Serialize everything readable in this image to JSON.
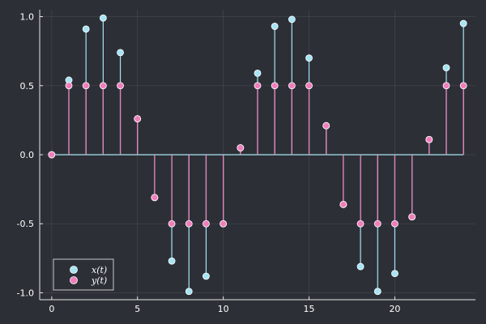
{
  "chart_data": {
    "type": "stem",
    "title": "",
    "xlabel": "",
    "ylabel": "",
    "xlim": [
      -0.7,
      24.7
    ],
    "ylim": [
      -1.05,
      1.05
    ],
    "xticks": [
      0,
      5,
      10,
      15,
      20
    ],
    "yticks": [
      -1.0,
      -0.5,
      0.0,
      0.5,
      1.0
    ],
    "ytick_labels": [
      "-1.0",
      "-0.5",
      "0.0",
      "0.5",
      "1.0"
    ],
    "grid": true,
    "legend_position": "bottom-left",
    "baseline": 0,
    "x": [
      0,
      1,
      2,
      3,
      4,
      5,
      6,
      7,
      8,
      9,
      10,
      11,
      12,
      13,
      14,
      15,
      16,
      17,
      18,
      19,
      20,
      21,
      22,
      23,
      24
    ],
    "series": [
      {
        "name": "x(t)",
        "color": "#a6e4f4",
        "values": [
          0,
          0.54,
          0.91,
          0.99,
          0.74,
          0.26,
          -0.31,
          -0.77,
          -0.99,
          -0.88,
          -0.5,
          0.05,
          0.59,
          0.93,
          0.98,
          0.7,
          0.21,
          -0.36,
          -0.81,
          -0.99,
          -0.86,
          -0.45,
          0.11,
          0.63,
          0.95
        ]
      },
      {
        "name": "y(t)",
        "color": "#f07ebc",
        "values": [
          0,
          0.5,
          0.5,
          0.5,
          0.5,
          0.26,
          -0.31,
          -0.5,
          -0.5,
          -0.5,
          -0.5,
          0.05,
          0.5,
          0.5,
          0.5,
          0.5,
          0.21,
          -0.36,
          -0.5,
          -0.5,
          -0.5,
          -0.45,
          0.11,
          0.5,
          0.5
        ]
      }
    ]
  }
}
